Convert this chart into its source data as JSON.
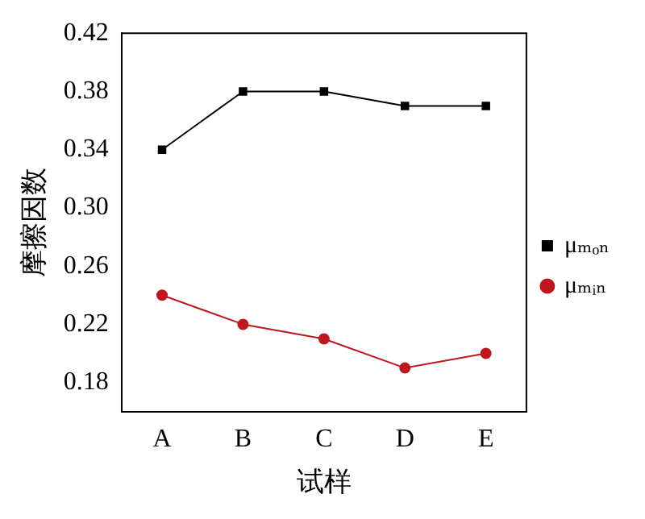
{
  "chart_data": {
    "type": "line",
    "xlabel": "试样",
    "ylabel": "摩擦因数",
    "categories": [
      "A",
      "B",
      "C",
      "D",
      "E"
    ],
    "series": [
      {
        "name": "μₘₒₙ",
        "color": "#000000",
        "marker": "square",
        "values": [
          0.34,
          0.38,
          0.38,
          0.37,
          0.37
        ]
      },
      {
        "name": "μₘᵢₙ",
        "color": "#c0161e",
        "marker": "circle",
        "values": [
          0.24,
          0.22,
          0.21,
          0.19,
          0.2
        ]
      }
    ],
    "ylim": [
      0.16,
      0.42
    ],
    "yticks": [
      0.18,
      0.22,
      0.26,
      {
        "value": 0.3,
        "label": "0.30"
      },
      0.34,
      0.38,
      0.42
    ],
    "grid": false,
    "legend": "right",
    "line_style": "solid"
  }
}
